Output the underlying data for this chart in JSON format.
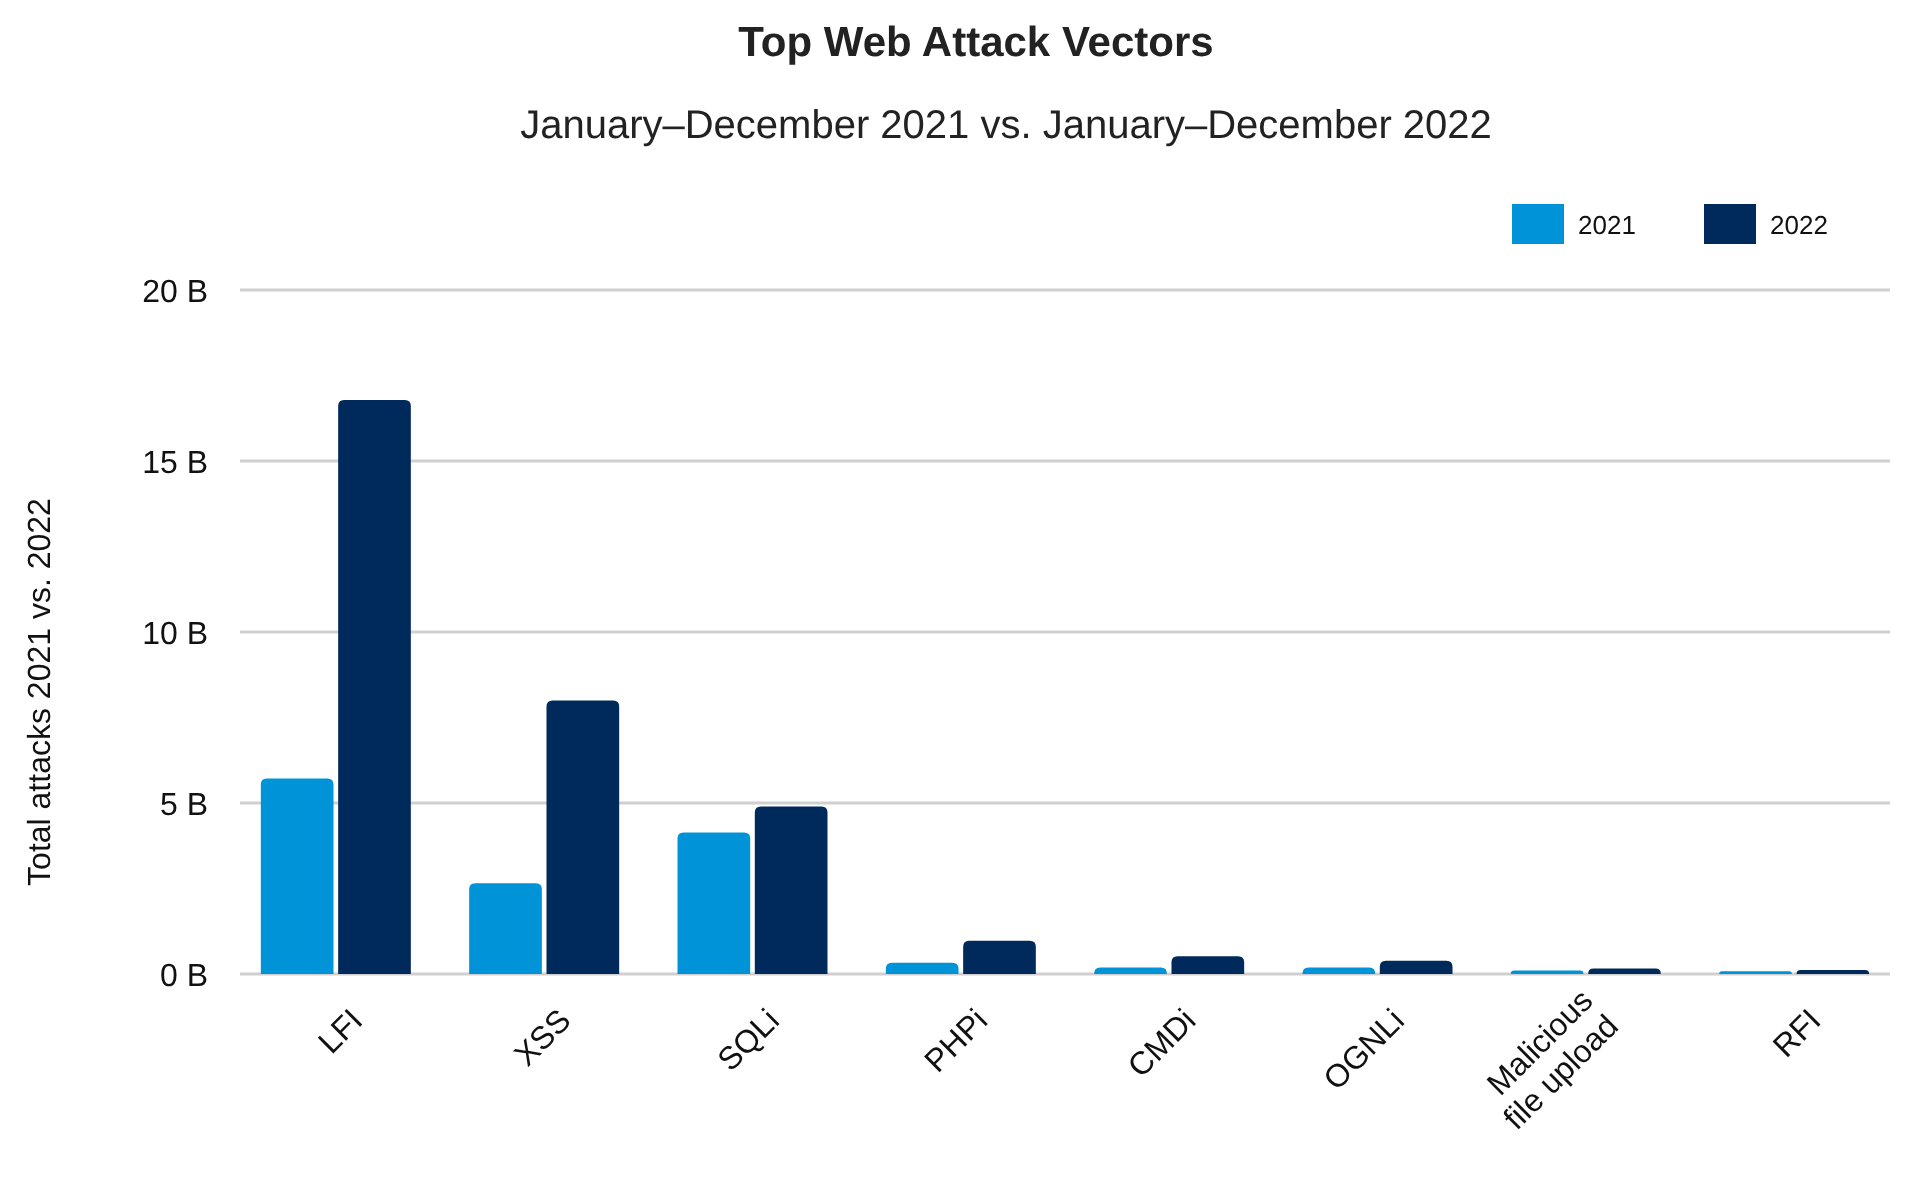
{
  "chart_data": {
    "type": "bar",
    "title": "Top Web Attack Vectors",
    "subtitle": "January–December 2021 vs. January–December 2022",
    "ylabel": "Total attacks 2021 vs. 2022",
    "categories": [
      "LFI",
      "XSS",
      "SQLi",
      "PHPi",
      "CMDi",
      "OGNLi",
      "Malicious file upload",
      "RFI"
    ],
    "series": [
      {
        "name": "2021",
        "color": "#0093d8",
        "values": [
          5.72,
          2.65,
          4.14,
          0.33,
          0.19,
          0.19,
          0.1,
          0.08
        ]
      },
      {
        "name": "2022",
        "color": "#002a5c",
        "values": [
          16.78,
          8.0,
          4.9,
          0.97,
          0.52,
          0.39,
          0.16,
          0.12
        ]
      }
    ],
    "ylim": [
      0,
      20
    ],
    "yticks": [
      {
        "value": 0,
        "label": "0 B"
      },
      {
        "value": 5,
        "label": "5 B"
      },
      {
        "value": 10,
        "label": "10 B"
      },
      {
        "value": 15,
        "label": "15 B"
      },
      {
        "value": 20,
        "label": "20 B"
      }
    ],
    "grid": "y",
    "legend": "top right"
  }
}
